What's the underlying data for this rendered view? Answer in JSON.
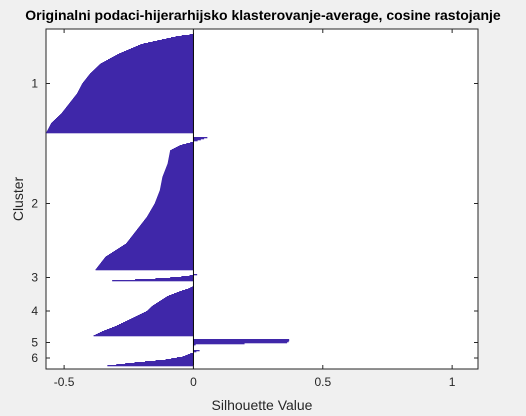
{
  "chart_data": {
    "type": "bar",
    "orientation": "horizontal",
    "title": "Originalni podaci-hijerarhijsko klasterovanje-average, cosine rastojanje",
    "xlabel": "Silhouette Value",
    "ylabel": "Cluster",
    "xlim": [
      -0.57,
      1.1
    ],
    "xticks": [
      -0.5,
      0,
      0.5,
      1
    ],
    "xtick_labels": [
      "-0.5",
      "0",
      "0.5",
      "1"
    ],
    "bar_color": "#3f27a9",
    "grid": false,
    "clusters": [
      {
        "label": "1",
        "profile": [
          [
            0.0,
            0.0
          ],
          [
            0.02,
            -0.06
          ],
          [
            0.06,
            -0.13
          ],
          [
            0.1,
            -0.2
          ],
          [
            0.2,
            -0.29
          ],
          [
            0.3,
            -0.36
          ],
          [
            0.4,
            -0.4
          ],
          [
            0.5,
            -0.43
          ],
          [
            0.6,
            -0.45
          ],
          [
            0.7,
            -0.48
          ],
          [
            0.8,
            -0.51
          ],
          [
            0.9,
            -0.55
          ],
          [
            1.0,
            -0.57
          ]
        ]
      },
      {
        "label": "2",
        "profile": [
          [
            0.0,
            0.06
          ],
          [
            0.03,
            0.01
          ],
          [
            0.06,
            -0.05
          ],
          [
            0.1,
            -0.09
          ],
          [
            0.2,
            -0.1
          ],
          [
            0.3,
            -0.12
          ],
          [
            0.4,
            -0.13
          ],
          [
            0.5,
            -0.15
          ],
          [
            0.6,
            -0.18
          ],
          [
            0.7,
            -0.22
          ],
          [
            0.8,
            -0.26
          ],
          [
            0.9,
            -0.34
          ],
          [
            1.0,
            -0.38
          ]
        ]
      },
      {
        "label": "3",
        "profile": [
          [
            0.0,
            0.05
          ],
          [
            0.1,
            0.0
          ],
          [
            0.25,
            -0.02
          ],
          [
            0.45,
            -0.07
          ],
          [
            0.7,
            -0.17
          ],
          [
            0.9,
            -0.3
          ],
          [
            1.0,
            -0.35
          ]
        ]
      },
      {
        "label": "4",
        "profile": [
          [
            0.0,
            0.0
          ],
          [
            0.05,
            -0.02
          ],
          [
            0.1,
            -0.05
          ],
          [
            0.2,
            -0.1
          ],
          [
            0.3,
            -0.13
          ],
          [
            0.4,
            -0.16
          ],
          [
            0.5,
            -0.18
          ],
          [
            0.6,
            -0.22
          ],
          [
            0.7,
            -0.26
          ],
          [
            0.8,
            -0.3
          ],
          [
            0.9,
            -0.35
          ],
          [
            1.0,
            -0.39
          ]
        ]
      },
      {
        "label": "5",
        "profile": [
          [
            0.0,
            0.37
          ],
          [
            0.3,
            0.37
          ],
          [
            0.55,
            0.36
          ],
          [
            0.75,
            0.01
          ],
          [
            1.0,
            0.0
          ]
        ]
      },
      {
        "label": "6",
        "profile": [
          [
            0.0,
            0.03
          ],
          [
            0.1,
            0.01
          ],
          [
            0.2,
            -0.01
          ],
          [
            0.4,
            -0.04
          ],
          [
            0.6,
            -0.11
          ],
          [
            0.8,
            -0.24
          ],
          [
            1.0,
            -0.35
          ]
        ]
      }
    ]
  }
}
